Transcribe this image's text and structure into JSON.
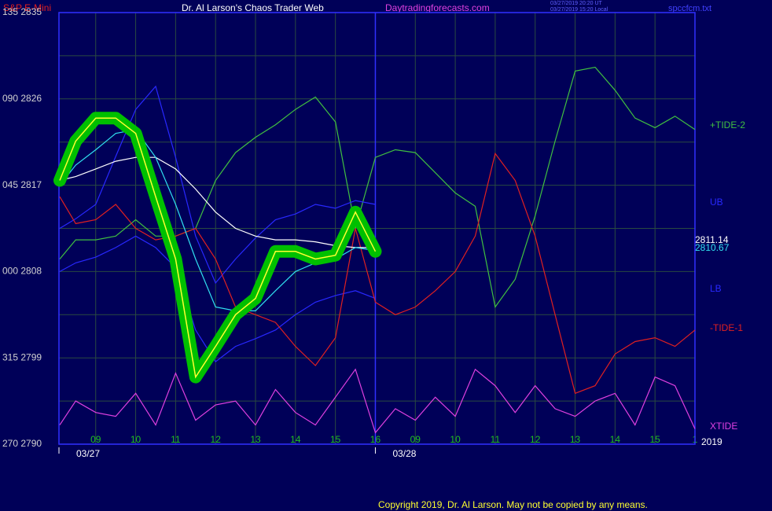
{
  "chart_data": {
    "type": "line",
    "title": "Dr. Al Larson's Chaos Trader Web",
    "symbol": "S&P E-Mini",
    "website": "Daytradingforecasts.com",
    "timestamps": [
      "03/27/2019 20:20 UT",
      "03/27/2019 15:20 Local"
    ],
    "file": "spccfcm.txt",
    "copyright": "Copyright 2019, Dr. Al Larson. May not be copied by any means.",
    "year": "2019",
    "price_labels": [
      "2811.14",
      "2810.67"
    ],
    "xlim": [
      -0.92,
      15
    ],
    "ylim": [
      2790,
      2835
    ],
    "yticks": [
      {
        "value": 2835,
        "label": "135 2835"
      },
      {
        "value": 2826,
        "label": "090 2826"
      },
      {
        "value": 2817,
        "label": "045 2817"
      },
      {
        "value": 2808,
        "label": "000 2808"
      },
      {
        "value": 2799,
        "label": "315 2799"
      },
      {
        "value": 2790,
        "label": "270 2790"
      }
    ],
    "yminorticks": [
      2830.5,
      2821.5,
      2812.5,
      2803.5,
      2794.5
    ],
    "xticks": [
      {
        "value": 0,
        "label": "09"
      },
      {
        "value": 1,
        "label": "10"
      },
      {
        "value": 2,
        "label": "11"
      },
      {
        "value": 3,
        "label": "12"
      },
      {
        "value": 4,
        "label": "13"
      },
      {
        "value": 5,
        "label": "14"
      },
      {
        "value": 6,
        "label": "15"
      },
      {
        "value": 7,
        "label": "16"
      },
      {
        "value": 8,
        "label": "09"
      },
      {
        "value": 9,
        "label": "10"
      },
      {
        "value": 10,
        "label": "11"
      },
      {
        "value": 11,
        "label": "12"
      },
      {
        "value": 12,
        "label": "13"
      },
      {
        "value": 13,
        "label": "14"
      },
      {
        "value": 14,
        "label": "15"
      },
      {
        "value": 15,
        "label": "1"
      }
    ],
    "date_ticks": [
      {
        "value": -0.92,
        "label": "03/27"
      },
      {
        "value": 7,
        "label": "03/28"
      }
    ],
    "grid": true,
    "x": [
      -0.9,
      -0.5,
      0,
      0.5,
      1,
      1.5,
      2,
      2.5,
      3,
      3.5,
      4,
      4.5,
      5,
      5.5,
      6,
      6.5,
      7,
      7.5,
      8,
      8.5,
      9,
      9.5,
      10,
      10.5,
      11,
      11.5,
      12,
      12.5,
      13,
      13.5,
      14,
      14.5,
      15
    ],
    "series": [
      {
        "name": "+TIDE-2",
        "color": "#40c040",
        "values": [
          2809.3,
          2811.3,
          2811.3,
          2811.7,
          2813.4,
          2811.7,
          2811.7,
          2812.5,
          2817.5,
          2820.4,
          2822.0,
          2823.3,
          2824.9,
          2826.2,
          2823.6,
          2812.5,
          2819.9,
          2820.7,
          2820.4,
          2818.3,
          2816.2,
          2814.8,
          2804.3,
          2807.2,
          2813.8,
          2821.6,
          2828.9,
          2829.3,
          2826.9,
          2824.0,
          2823.0,
          2824.2,
          2822.8
        ]
      },
      {
        "name": "UB",
        "color": "#2828ff",
        "values": [
          2812.5,
          2813.5,
          2815.0,
          2820.0,
          2824.9,
          2827.3,
          2819.9,
          2811.7,
          2806.8,
          2809.3,
          2811.5,
          2813.4,
          2814.0,
          2815.0,
          2814.6,
          2815.4,
          2815.0,
          null,
          null,
          null,
          null,
          null,
          null,
          null,
          null,
          null,
          null,
          null,
          null,
          null,
          null,
          null,
          null
        ]
      },
      {
        "name": "LB",
        "color": "#2828ff",
        "values": [
          2808.0,
          2808.9,
          2809.5,
          2810.5,
          2811.7,
          2810.5,
          2808.4,
          2801.9,
          2798.6,
          2800.2,
          2801.0,
          2801.9,
          2803.5,
          2804.8,
          2805.5,
          2806.0,
          2805.2,
          null,
          null,
          null,
          null,
          null,
          null,
          null,
          null,
          null,
          null,
          null,
          null,
          null,
          null,
          null,
          null
        ]
      },
      {
        "name": "-TIDE-1",
        "color": "#e02020",
        "values": [
          2815.8,
          2813.0,
          2813.4,
          2815.0,
          2812.5,
          2811.3,
          2811.7,
          2812.5,
          2809.3,
          2804.3,
          2803.5,
          2802.7,
          2800.2,
          2798.2,
          2801.1,
          2812.5,
          2804.8,
          2803.5,
          2804.3,
          2806.0,
          2808.0,
          2811.7,
          2820.3,
          2817.5,
          2811.7,
          2803.5,
          2795.3,
          2796.1,
          2799.4,
          2800.7,
          2801.1,
          2800.2,
          2801.9
        ]
      },
      {
        "name": "XTIDE",
        "color": "#e040e0",
        "values": [
          2792.0,
          2794.5,
          2793.3,
          2792.9,
          2795.3,
          2792.0,
          2797.4,
          2792.5,
          2794.1,
          2794.5,
          2792.0,
          2795.7,
          2793.3,
          2792.0,
          2794.9,
          2797.8,
          2791.2,
          2793.7,
          2792.5,
          2794.9,
          2792.9,
          2797.8,
          2796.1,
          2793.3,
          2796.1,
          2793.7,
          2792.9,
          2794.5,
          2795.3,
          2792.0,
          2797.0,
          2796.1,
          2791.6
        ]
      },
      {
        "color": "#ffffff",
        "values": [
          2817.5,
          2817.9,
          2818.7,
          2819.5,
          2819.9,
          2819.9,
          2818.7,
          2816.6,
          2814.2,
          2812.5,
          2811.7,
          2811.3,
          2811.3,
          2811.1,
          2810.7,
          2810.5,
          2810.5,
          null,
          null,
          null,
          null,
          null,
          null,
          null,
          null,
          null,
          null,
          null,
          null,
          null,
          null,
          null,
          null
        ]
      },
      {
        "color": "#30e0f0",
        "values": [
          2817.0,
          2819.1,
          2820.7,
          2822.4,
          2822.8,
          2819.9,
          2815.0,
          2809.3,
          2804.3,
          2803.9,
          2803.9,
          2806.0,
          2808.0,
          2808.9,
          2809.3,
          2810.5,
          2810.2,
          null,
          null,
          null,
          null,
          null,
          null,
          null,
          null,
          null,
          null,
          null,
          null,
          null,
          null,
          null,
          null
        ]
      },
      {
        "color": "#ffff30",
        "values": [
          2817.5,
          2821.6,
          2824.0,
          2824.0,
          2822.4,
          2815.8,
          2809.3,
          2797.0,
          2800.2,
          2803.5,
          2805.2,
          2810.1,
          2810.1,
          2809.3,
          2809.7,
          2814.2,
          2810.1,
          null,
          null,
          null,
          null,
          null,
          null,
          null,
          null,
          null,
          null,
          null,
          null,
          null,
          null,
          null,
          null
        ]
      }
    ]
  }
}
